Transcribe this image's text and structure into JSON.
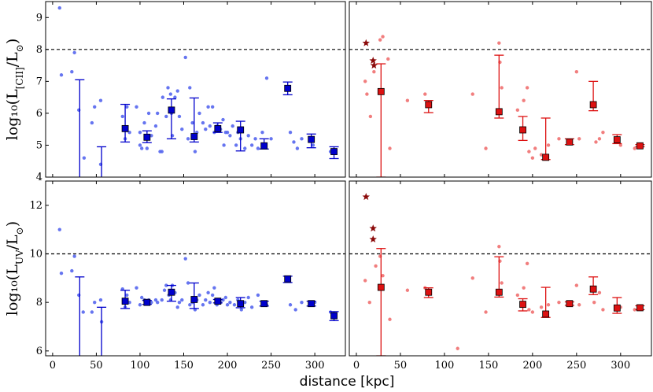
{
  "figure": {
    "xlabel": "distance [kpc]"
  },
  "chart_data": [
    {
      "id": "cii-blue",
      "type": "scatter",
      "color": "#0000cc",
      "point_color": "#5566ee",
      "ylabel_main": "log₁₀(L",
      "ylabel_sub": "[CII]",
      "ylabel_mid": "/L",
      "ylabel_sub2": "⊙",
      "ylabel_end": ")",
      "xlim": [
        -8,
        335
      ],
      "ylim": [
        4,
        9.5
      ],
      "yticks": [
        4,
        5,
        6,
        7,
        8,
        9
      ],
      "xticks": [
        0,
        50,
        100,
        150,
        200,
        250,
        300
      ],
      "threshold": 8.0,
      "points": [
        [
          8,
          9.3
        ],
        [
          10,
          7.2
        ],
        [
          22,
          7.3
        ],
        [
          25,
          7.9
        ],
        [
          30,
          6.1
        ],
        [
          36,
          4.6
        ],
        [
          45,
          5.7
        ],
        [
          48,
          6.2
        ],
        [
          55,
          6.4
        ],
        [
          55,
          4.4
        ],
        [
          80,
          5.9
        ],
        [
          83,
          5.2
        ],
        [
          85,
          6.2
        ],
        [
          88,
          5.4
        ],
        [
          96,
          6.2
        ],
        [
          100,
          5.4
        ],
        [
          100,
          5.0
        ],
        [
          102,
          4.9
        ],
        [
          108,
          4.9
        ],
        [
          105,
          5.7
        ],
        [
          110,
          6.0
        ],
        [
          113,
          5.3
        ],
        [
          118,
          5.6
        ],
        [
          120,
          6.0
        ],
        [
          123,
          4.8
        ],
        [
          125,
          4.8
        ],
        [
          126,
          6.5
        ],
        [
          130,
          5.9
        ],
        [
          132,
          6.8
        ],
        [
          135,
          6.6
        ],
        [
          136,
          6.0
        ],
        [
          137,
          5.3
        ],
        [
          140,
          6.5
        ],
        [
          143,
          6.7
        ],
        [
          145,
          5.9
        ],
        [
          148,
          5.5
        ],
        [
          152,
          7.75
        ],
        [
          155,
          5.2
        ],
        [
          157,
          6.8
        ],
        [
          160,
          5.7
        ],
        [
          163,
          4.8
        ],
        [
          165,
          5.4
        ],
        [
          168,
          6.0
        ],
        [
          172,
          5.7
        ],
        [
          175,
          5.5
        ],
        [
          178,
          6.2
        ],
        [
          180,
          5.6
        ],
        [
          183,
          6.2
        ],
        [
          185,
          5.4
        ],
        [
          188,
          5.6
        ],
        [
          192,
          5.5
        ],
        [
          195,
          5.8
        ],
        [
          196,
          5.0
        ],
        [
          198,
          5.4
        ],
        [
          200,
          5.4
        ],
        [
          203,
          5.3
        ],
        [
          206,
          5.6
        ],
        [
          210,
          5.0
        ],
        [
          212,
          5.4
        ],
        [
          215,
          5.2
        ],
        [
          220,
          4.9
        ],
        [
          224,
          5.3
        ],
        [
          228,
          5.0
        ],
        [
          232,
          5.2
        ],
        [
          235,
          4.9
        ],
        [
          240,
          5.4
        ],
        [
          245,
          7.1
        ],
        [
          250,
          5.2
        ],
        [
          272,
          5.4
        ],
        [
          276,
          5.1
        ],
        [
          280,
          4.9
        ],
        [
          285,
          5.2
        ],
        [
          298,
          5.0
        ],
        [
          318,
          4.8
        ]
      ],
      "binned": [
        {
          "x": 31,
          "y": null,
          "lo": null,
          "hi": 7.05
        },
        {
          "x": 56,
          "y": null,
          "lo": null,
          "hi": 4.95
        },
        {
          "x": 83,
          "y": 5.52,
          "lo": 5.1,
          "hi": 6.28
        },
        {
          "x": 108,
          "y": 5.25,
          "lo": 5.08,
          "hi": 5.45
        },
        {
          "x": 136,
          "y": 6.1,
          "lo": 5.2,
          "hi": 6.45
        },
        {
          "x": 162,
          "y": 5.27,
          "lo": 5.1,
          "hi": 6.48
        },
        {
          "x": 189,
          "y": 5.52,
          "lo": 5.4,
          "hi": 5.7
        },
        {
          "x": 215,
          "y": 5.48,
          "lo": 4.82,
          "hi": 5.75
        },
        {
          "x": 242,
          "y": 4.98,
          "lo": 4.88,
          "hi": 5.2
        },
        {
          "x": 269,
          "y": 6.78,
          "lo": 6.58,
          "hi": 6.98
        },
        {
          "x": 296,
          "y": 5.18,
          "lo": 4.92,
          "hi": 5.35
        },
        {
          "x": 322,
          "y": 4.8,
          "lo": 4.58,
          "hi": 4.95
        }
      ],
      "stars": []
    },
    {
      "id": "cii-red",
      "type": "scatter",
      "color": "#dd1111",
      "point_color": "#f07070",
      "xlim": [
        -8,
        335
      ],
      "ylim": [
        4,
        9.5
      ],
      "xticks": [
        0,
        50,
        100,
        150,
        200,
        250,
        300
      ],
      "threshold": 8.0,
      "points": [
        [
          10,
          7.0
        ],
        [
          12,
          6.6
        ],
        [
          16,
          5.9
        ],
        [
          20,
          7.3
        ],
        [
          27,
          8.3
        ],
        [
          30,
          8.4
        ],
        [
          36,
          7.7
        ],
        [
          38,
          4.9
        ],
        [
          58,
          6.4
        ],
        [
          78,
          6.6
        ],
        [
          132,
          6.6
        ],
        [
          147,
          4.9
        ],
        [
          162,
          8.2
        ],
        [
          163,
          7.6
        ],
        [
          165,
          6.8
        ],
        [
          183,
          6.1
        ],
        [
          190,
          6.4
        ],
        [
          194,
          6.8
        ],
        [
          196,
          4.8
        ],
        [
          200,
          4.6
        ],
        [
          203,
          4.9
        ],
        [
          210,
          4.7
        ],
        [
          218,
          5.0
        ],
        [
          230,
          5.2
        ],
        [
          240,
          5.1
        ],
        [
          250,
          7.3
        ],
        [
          253,
          5.2
        ],
        [
          272,
          5.1
        ],
        [
          276,
          5.2
        ],
        [
          280,
          5.4
        ],
        [
          300,
          5.0
        ],
        [
          316,
          4.9
        ]
      ],
      "binned": [
        {
          "x": 28,
          "y": 6.68,
          "lo": 4.0,
          "hi": 7.55
        },
        {
          "x": 82,
          "y": 6.27,
          "lo": 6.02,
          "hi": 6.4
        },
        {
          "x": 162,
          "y": 6.05,
          "lo": 5.85,
          "hi": 7.82
        },
        {
          "x": 189,
          "y": 5.48,
          "lo": 5.15,
          "hi": 5.9
        },
        {
          "x": 215,
          "y": 4.62,
          "lo": 4.55,
          "hi": 5.85
        },
        {
          "x": 242,
          "y": 5.1,
          "lo": 5.02,
          "hi": 5.2
        },
        {
          "x": 269,
          "y": 6.27,
          "lo": 6.08,
          "hi": 7.0
        },
        {
          "x": 296,
          "y": 5.17,
          "lo": 5.05,
          "hi": 5.33
        },
        {
          "x": 322,
          "y": 4.98,
          "lo": 4.95,
          "hi": 5.02
        }
      ],
      "stars": [
        [
          11,
          8.2
        ],
        [
          19,
          7.65
        ],
        [
          20,
          7.5
        ]
      ]
    },
    {
      "id": "uv-blue",
      "type": "scatter",
      "color": "#0000cc",
      "point_color": "#5566ee",
      "ylabel_main": "log₁₀(L",
      "ylabel_sub": "UV",
      "ylabel_mid": "/L",
      "ylabel_sub2": "⊙",
      "ylabel_end": ")",
      "xlim": [
        -8,
        335
      ],
      "ylim": [
        5.8,
        13.0
      ],
      "yticks": [
        6,
        8,
        10,
        12
      ],
      "xticks": [
        0,
        50,
        100,
        150,
        200,
        250,
        300
      ],
      "threshold": 10.0,
      "points": [
        [
          8,
          11.0
        ],
        [
          10,
          9.2
        ],
        [
          22,
          9.3
        ],
        [
          25,
          9.9
        ],
        [
          30,
          8.3
        ],
        [
          35,
          7.6
        ],
        [
          45,
          7.6
        ],
        [
          48,
          8.0
        ],
        [
          55,
          8.1
        ],
        [
          56,
          7.2
        ],
        [
          80,
          8.55
        ],
        [
          83,
          7.8
        ],
        [
          85,
          8.3
        ],
        [
          88,
          8.0
        ],
        [
          96,
          8.6
        ],
        [
          100,
          7.9
        ],
        [
          102,
          8.2
        ],
        [
          105,
          8.1
        ],
        [
          110,
          8.1
        ],
        [
          113,
          8.0
        ],
        [
          118,
          8.1
        ],
        [
          120,
          8.0
        ],
        [
          125,
          8.1
        ],
        [
          128,
          8.5
        ],
        [
          130,
          8.7
        ],
        [
          133,
          8.3
        ],
        [
          135,
          8.1
        ],
        [
          137,
          8.7
        ],
        [
          140,
          8.4
        ],
        [
          143,
          7.8
        ],
        [
          145,
          8.0
        ],
        [
          148,
          8.1
        ],
        [
          152,
          9.8
        ],
        [
          155,
          8.8
        ],
        [
          157,
          7.9
        ],
        [
          160,
          8.0
        ],
        [
          163,
          7.7
        ],
        [
          165,
          8.1
        ],
        [
          168,
          8.3
        ],
        [
          172,
          7.9
        ],
        [
          175,
          8.1
        ],
        [
          178,
          8.4
        ],
        [
          180,
          8.0
        ],
        [
          183,
          8.3
        ],
        [
          185,
          8.6
        ],
        [
          188,
          7.9
        ],
        [
          192,
          8.0
        ],
        [
          195,
          8.1
        ],
        [
          198,
          8.2
        ],
        [
          200,
          7.9
        ],
        [
          203,
          8.0
        ],
        [
          208,
          7.9
        ],
        [
          212,
          8.1
        ],
        [
          216,
          7.7
        ],
        [
          220,
          8.0
        ],
        [
          224,
          8.2
        ],
        [
          228,
          7.8
        ],
        [
          235,
          8.3
        ],
        [
          240,
          7.9
        ],
        [
          245,
          7.9
        ],
        [
          272,
          7.9
        ],
        [
          278,
          7.7
        ],
        [
          285,
          8.0
        ],
        [
          300,
          8.0
        ],
        [
          318,
          7.6
        ]
      ],
      "binned": [
        {
          "x": 31,
          "y": null,
          "lo": null,
          "hi": 9.05
        },
        {
          "x": 56,
          "y": null,
          "lo": null,
          "hi": 7.8
        },
        {
          "x": 83,
          "y": 8.05,
          "lo": 7.75,
          "hi": 8.5
        },
        {
          "x": 108,
          "y": 8.0,
          "lo": 7.92,
          "hi": 8.08
        },
        {
          "x": 136,
          "y": 8.42,
          "lo": 8.05,
          "hi": 8.7
        },
        {
          "x": 162,
          "y": 8.12,
          "lo": 7.75,
          "hi": 8.8
        },
        {
          "x": 189,
          "y": 8.05,
          "lo": 7.98,
          "hi": 8.12
        },
        {
          "x": 215,
          "y": 7.95,
          "lo": 7.78,
          "hi": 8.2
        },
        {
          "x": 242,
          "y": 7.95,
          "lo": 7.85,
          "hi": 8.05
        },
        {
          "x": 269,
          "y": 8.97,
          "lo": 8.82,
          "hi": 9.08
        },
        {
          "x": 296,
          "y": 7.95,
          "lo": 7.85,
          "hi": 8.05
        },
        {
          "x": 322,
          "y": 7.45,
          "lo": 7.25,
          "hi": 7.62
        }
      ],
      "stars": []
    },
    {
      "id": "uv-red",
      "type": "scatter",
      "color": "#dd1111",
      "point_color": "#f07070",
      "xlim": [
        -8,
        335
      ],
      "ylim": [
        5.8,
        13.0
      ],
      "xticks": [
        0,
        50,
        100,
        150,
        200,
        250,
        300
      ],
      "threshold": 10.0,
      "points": [
        [
          10,
          8.9
        ],
        [
          15,
          8.0
        ],
        [
          22,
          9.5
        ],
        [
          27,
          9.9
        ],
        [
          30,
          9.1
        ],
        [
          38,
          7.3
        ],
        [
          58,
          8.5
        ],
        [
          78,
          8.6
        ],
        [
          115,
          6.1
        ],
        [
          132,
          9.0
        ],
        [
          147,
          7.6
        ],
        [
          162,
          10.3
        ],
        [
          163,
          9.7
        ],
        [
          165,
          8.8
        ],
        [
          183,
          8.3
        ],
        [
          190,
          8.6
        ],
        [
          194,
          9.6
        ],
        [
          196,
          7.7
        ],
        [
          200,
          7.6
        ],
        [
          210,
          7.8
        ],
        [
          218,
          7.9
        ],
        [
          230,
          8.0
        ],
        [
          240,
          7.9
        ],
        [
          250,
          8.7
        ],
        [
          253,
          7.9
        ],
        [
          270,
          8.0
        ],
        [
          276,
          8.4
        ],
        [
          280,
          7.7
        ],
        [
          300,
          7.8
        ],
        [
          316,
          7.7
        ]
      ],
      "binned": [
        {
          "x": 28,
          "y": 8.62,
          "lo": 5.8,
          "hi": 10.22
        },
        {
          "x": 82,
          "y": 8.42,
          "lo": 8.2,
          "hi": 8.6
        },
        {
          "x": 162,
          "y": 8.42,
          "lo": 8.22,
          "hi": 9.88
        },
        {
          "x": 189,
          "y": 7.92,
          "lo": 7.65,
          "hi": 8.15
        },
        {
          "x": 215,
          "y": 7.52,
          "lo": 7.38,
          "hi": 8.62
        },
        {
          "x": 242,
          "y": 7.95,
          "lo": 7.88,
          "hi": 8.02
        },
        {
          "x": 269,
          "y": 8.55,
          "lo": 8.32,
          "hi": 9.05
        },
        {
          "x": 296,
          "y": 7.77,
          "lo": 7.55,
          "hi": 8.2
        },
        {
          "x": 322,
          "y": 7.78,
          "lo": 7.7,
          "hi": 7.86
        }
      ],
      "stars": [
        [
          11,
          12.35
        ],
        [
          19,
          11.05
        ],
        [
          19,
          10.6
        ]
      ]
    }
  ]
}
